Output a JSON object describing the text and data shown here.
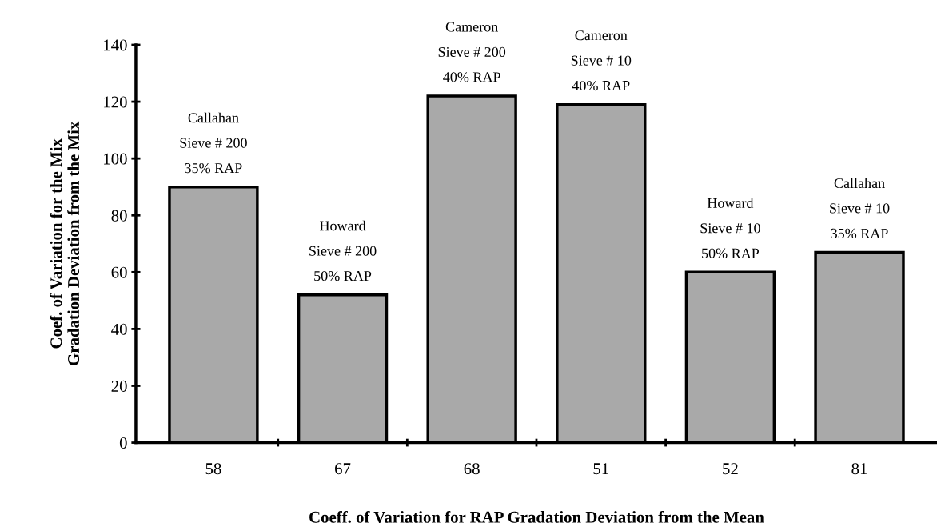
{
  "chart_data": {
    "type": "bar",
    "xlabel": "Coeff. of Variation for RAP Gradation Deviation from the Mean",
    "ylabel": "Coef. of Variation for the Mix\nGradation Deviation from the Mix",
    "categories": [
      "58",
      "67",
      "68",
      "51",
      "52",
      "81"
    ],
    "values": [
      90,
      52,
      122,
      119,
      60,
      67
    ],
    "color": "#a9a9a9",
    "ylim": [
      0,
      140
    ],
    "yticks": [
      0,
      20,
      40,
      60,
      80,
      100,
      120,
      140
    ],
    "grid": false,
    "legend": false,
    "annotations": [
      {
        "text": "Callahan\nSieve # 200\n35% RAP",
        "x": "58",
        "y": 90
      },
      {
        "text": "Howard\nSieve # 200\n50% RAP",
        "x": "67",
        "y": 52
      },
      {
        "text": "Cameron\nSieve # 200\n40% RAP",
        "x": "68",
        "y": 122
      },
      {
        "text": "Cameron\nSieve # 10\n40% RAP",
        "x": "51",
        "y": 119
      },
      {
        "text": "Howard\nSieve # 10\n50% RAP",
        "x": "52",
        "y": 60
      },
      {
        "text": "Callahan\nSieve # 10\n35% RAP",
        "x": "81",
        "y": 67
      }
    ]
  }
}
